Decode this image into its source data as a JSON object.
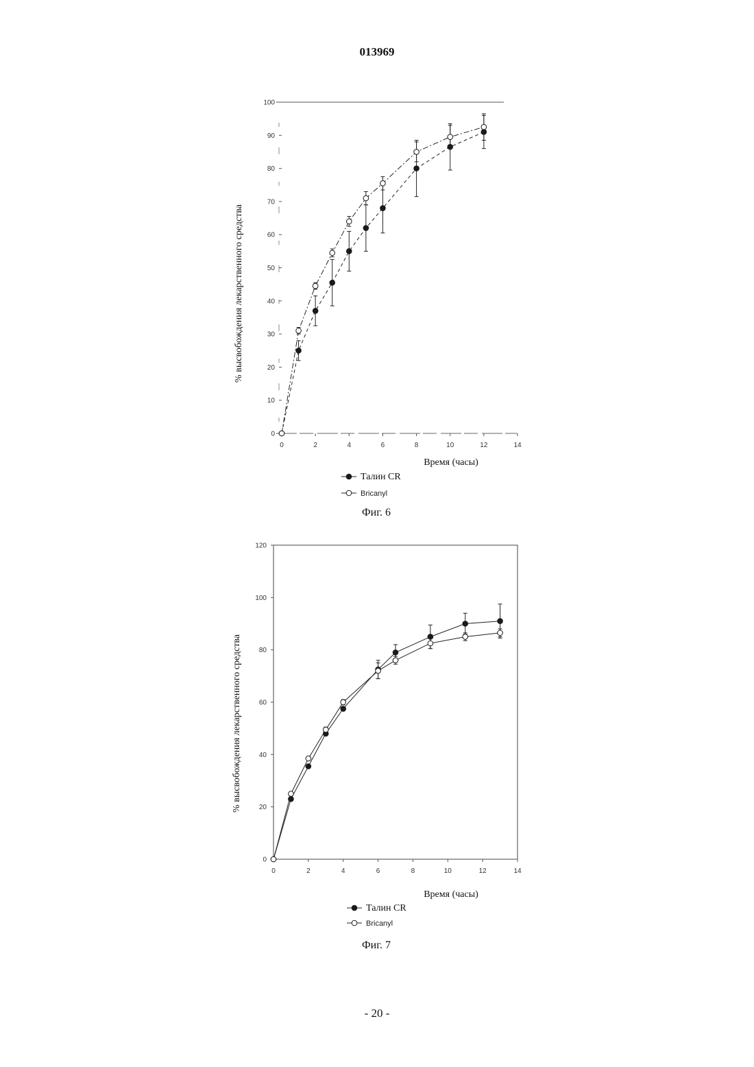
{
  "page": {
    "doc_number": "013969",
    "page_number": "- 20 -"
  },
  "chart_data": [
    {
      "type": "line",
      "caption": "Фиг. 6",
      "xlabel": "Время (часы)",
      "ylabel": "% высвобождения лекарственного средства",
      "xlim": [
        0,
        14
      ],
      "ylim": [
        0,
        100
      ],
      "x_ticks": [
        "0",
        "2",
        "4",
        "6",
        "8",
        "10",
        "12",
        "14"
      ],
      "y_ticks": [
        "0",
        "10",
        "20",
        "30",
        "40",
        "50",
        "60",
        "70",
        "80",
        "90",
        "100"
      ],
      "grid": false,
      "legend_position": "bottom",
      "series": [
        {
          "name": "Талин CR",
          "marker": "filled-circle",
          "line": "dashed",
          "x": [
            0,
            1,
            2,
            3,
            4,
            5,
            6,
            8,
            10,
            12
          ],
          "y": [
            0,
            25,
            37,
            45.5,
            55,
            62,
            68,
            80,
            86.5,
            91
          ],
          "err": [
            0,
            3,
            4.5,
            7,
            6,
            7,
            7.5,
            8.5,
            7,
            5
          ]
        },
        {
          "name": "Bricanyl",
          "marker": "open-circle",
          "line": "dash-dot",
          "x": [
            0,
            1,
            2,
            3,
            4,
            5,
            6,
            8,
            10,
            12
          ],
          "y": [
            0,
            31,
            44.5,
            54.5,
            64,
            71,
            75.5,
            85,
            89.5,
            92.5
          ],
          "err": [
            0,
            1,
            1,
            1.2,
            1.5,
            2,
            2,
            3,
            3.5,
            4
          ]
        }
      ]
    },
    {
      "type": "line",
      "caption": "Фиг. 7",
      "xlabel": "Время (часы)",
      "ylabel": "% высвобождения лекарственного средства",
      "xlim": [
        0,
        14
      ],
      "ylim": [
        0,
        120
      ],
      "x_ticks": [
        "0",
        "2",
        "4",
        "6",
        "8",
        "10",
        "12",
        "14"
      ],
      "y_ticks": [
        "0",
        "20",
        "40",
        "60",
        "80",
        "100",
        "120"
      ],
      "grid": false,
      "legend_position": "bottom",
      "series": [
        {
          "name": "Талин CR",
          "marker": "filled-circle",
          "line": "solid",
          "x": [
            0,
            1,
            2,
            3,
            4,
            6,
            7,
            9,
            11,
            13
          ],
          "y": [
            0,
            23,
            35.5,
            48,
            57.5,
            72.5,
            79,
            85,
            90,
            91
          ],
          "err": [
            0,
            0.5,
            0.5,
            0.8,
            0.8,
            3.5,
            3,
            4.5,
            4,
            6.5
          ]
        },
        {
          "name": "Bricanyl",
          "marker": "open-circle",
          "line": "solid",
          "x": [
            0,
            1,
            2,
            3,
            4,
            6,
            7,
            9,
            11,
            13
          ],
          "y": [
            0,
            25,
            38.5,
            49.5,
            60,
            72,
            76,
            82.5,
            85,
            86.5
          ],
          "err": [
            0,
            0.5,
            0.5,
            1,
            1,
            3,
            1.5,
            2,
            1.5,
            1.5
          ]
        }
      ]
    }
  ]
}
